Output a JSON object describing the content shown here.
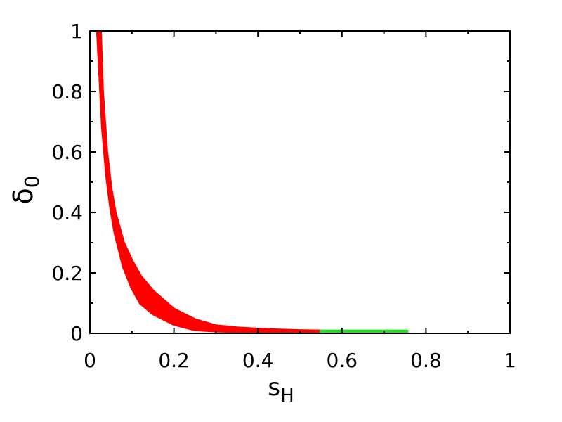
{
  "chart_data": {
    "type": "area",
    "title": "",
    "xlabel": "s",
    "xlabel_sub": "H",
    "ylabel": "δ",
    "ylabel_sub": "0",
    "xlim": [
      0,
      1
    ],
    "ylim": [
      0,
      1
    ],
    "x_ticks": [
      0,
      0.2,
      0.4,
      0.6,
      0.8,
      1
    ],
    "x_tick_labels": [
      "0",
      "0.2",
      "0.4",
      "0.6",
      "0.8",
      "1"
    ],
    "y_ticks": [
      0,
      0.2,
      0.4,
      0.6,
      0.8,
      1
    ],
    "y_tick_labels": [
      "0",
      "0.2",
      "0.4",
      "0.6",
      "0.8",
      "1"
    ],
    "grid": false,
    "series": [
      {
        "color": "#ff0000",
        "x": [
          0.018,
          0.025,
          0.03,
          0.04,
          0.05,
          0.06,
          0.08,
          0.1,
          0.12,
          0.15,
          0.2,
          0.25,
          0.3,
          0.35,
          0.4,
          0.45,
          0.5,
          0.55
        ],
        "upper": [
          1.0,
          1.0,
          0.8,
          0.6,
          0.48,
          0.4,
          0.3,
          0.24,
          0.19,
          0.14,
          0.08,
          0.045,
          0.025,
          0.018,
          0.014,
          0.011,
          0.009,
          0.008
        ],
        "lower": [
          1.0,
          0.82,
          0.68,
          0.52,
          0.41,
          0.33,
          0.22,
          0.15,
          0.1,
          0.065,
          0.03,
          0.012,
          0.008,
          0.006,
          0.005,
          0.004,
          0.003,
          0.003
        ]
      },
      {
        "color": "#22dd22",
        "x": [
          0.55,
          0.6,
          0.65,
          0.7,
          0.755
        ],
        "upper": [
          0.008,
          0.008,
          0.008,
          0.008,
          0.008
        ],
        "lower": [
          0.001,
          0.001,
          0.001,
          0.001,
          0.001
        ]
      }
    ]
  }
}
